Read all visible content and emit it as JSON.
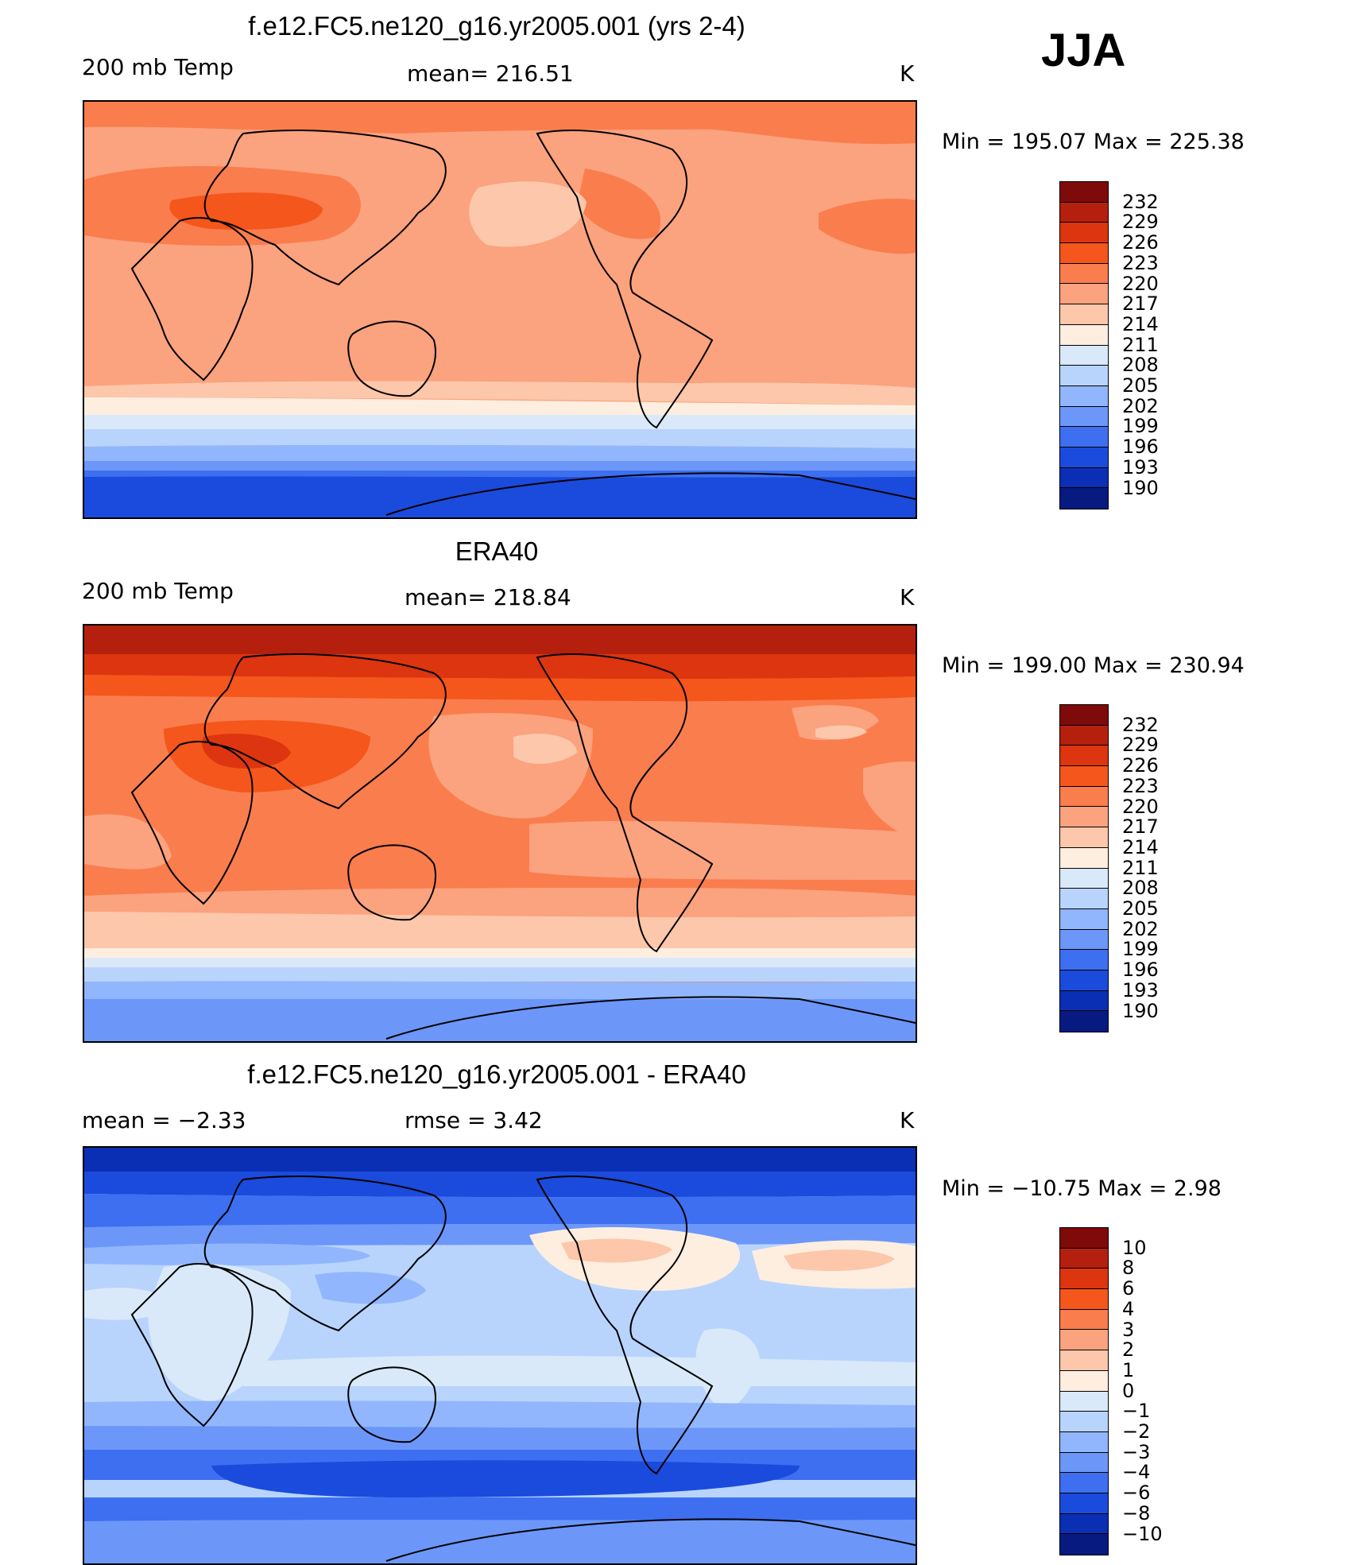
{
  "season": "JJA",
  "panels": [
    {
      "title": "f.e12.FC5.ne120_g16.yr2005.001 (yrs 2-4)",
      "left_label": "200 mb Temp",
      "center_label": "mean= 216.51",
      "right_label": "K",
      "minmax": "Min = 195.07 Max = 225.38"
    },
    {
      "title": "ERA40",
      "left_label": "200 mb Temp",
      "center_label": "mean= 218.84",
      "right_label": "K",
      "minmax": "Min = 199.00 Max = 230.94"
    },
    {
      "title": "f.e12.FC5.ne120_g16.yr2005.001 - ERA40",
      "left_label": "mean =   −2.33",
      "center_label": "rmse =    3.42",
      "right_label": "K",
      "minmax": "Min = −10.75 Max =    2.98"
    }
  ],
  "colorbars": {
    "abs_labels": [
      "232",
      "229",
      "226",
      "223",
      "220",
      "217",
      "214",
      "211",
      "208",
      "205",
      "202",
      "199",
      "196",
      "193",
      "190"
    ],
    "abs_colors": [
      "#7f0a0a",
      "#b4200d",
      "#dc3510",
      "#f5561b",
      "#fa7d4e",
      "#fba27e",
      "#fcc7aa",
      "#feeee0",
      "#d9e9f9",
      "#b8d4fc",
      "#91b6fd",
      "#6c97f9",
      "#3d6ff0",
      "#1b4bdc",
      "#0a2fb4",
      "#061a80"
    ],
    "diff_labels": [
      "10",
      "8",
      "6",
      "4",
      "3",
      "2",
      "1",
      "0",
      "−1",
      "−2",
      "−3",
      "−4",
      "−6",
      "−8",
      "−10"
    ],
    "diff_colors": [
      "#7f0a0a",
      "#b4200d",
      "#dc3510",
      "#f5561b",
      "#fa7d4e",
      "#fba27e",
      "#fcc7aa",
      "#feeee0",
      "#d9e9f9",
      "#b8d4fc",
      "#91b6fd",
      "#6c97f9",
      "#3d6ff0",
      "#1b4bdc",
      "#0a2fb4",
      "#061a80"
    ]
  },
  "map_data": {
    "projection": "cylindrical equidistant, Pacific-centered",
    "longitude_range": [
      30,
      390
    ],
    "latitude_range": [
      -90,
      90
    ],
    "variable": "200 mb Temp",
    "units": "K"
  }
}
